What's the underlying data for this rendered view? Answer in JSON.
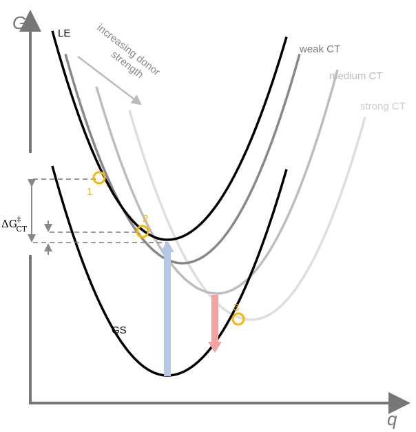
{
  "axes": {
    "y_label": "G",
    "x_label": "q"
  },
  "curves": [
    {
      "id": "LE",
      "label": "LE",
      "color": "#000000"
    },
    {
      "id": "weak",
      "label": "weak CT",
      "color": "#888888"
    },
    {
      "id": "medium",
      "label": "medium CT",
      "color": "#bdbdbd"
    },
    {
      "id": "strong",
      "label": "strong CT",
      "color": "#dedede"
    },
    {
      "id": "GS",
      "label": "GS",
      "color": "#000000"
    }
  ],
  "annotation": {
    "line1": "increasing donor",
    "line2": "strength"
  },
  "crossings": [
    {
      "label": "1"
    },
    {
      "label": "2"
    },
    {
      "label": "3"
    }
  ],
  "barrier": {
    "symbol": "ΔG",
    "superscript": "‡",
    "subscript": "CT"
  },
  "colors": {
    "crossing": "#f5b800",
    "absorption": "#b4c7e7",
    "emission": "#f4a3a3",
    "axis": "#777777"
  }
}
